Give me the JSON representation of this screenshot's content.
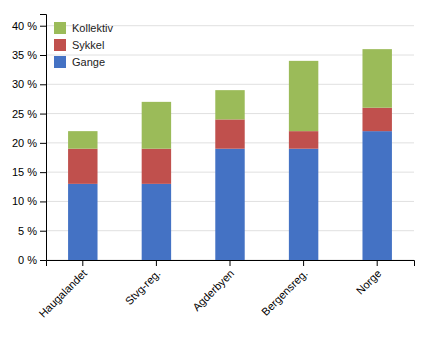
{
  "chart_data": {
    "type": "bar",
    "stacked": true,
    "categories": [
      "Haugalandet",
      "Stvg-reg.",
      "Agderbyen",
      "Bergensreg.",
      "Norge"
    ],
    "series": [
      {
        "name": "Gange",
        "color": "#4472C4",
        "values": [
          13,
          13,
          19,
          19,
          22
        ]
      },
      {
        "name": "Sykkel",
        "color": "#C0504D",
        "values": [
          6,
          6,
          5,
          3,
          4
        ]
      },
      {
        "name": "Kollektiv",
        "color": "#9BBB59",
        "values": [
          3,
          8,
          5,
          12,
          10
        ]
      }
    ],
    "ylim": [
      0,
      42
    ],
    "yticks": [
      {
        "value": 0,
        "label": "0 %"
      },
      {
        "value": 5,
        "label": "5 %"
      },
      {
        "value": 10,
        "label": "10 %"
      },
      {
        "value": 15,
        "label": "15 %"
      },
      {
        "value": 20,
        "label": "20 %"
      },
      {
        "value": 25,
        "label": "25 %"
      },
      {
        "value": 30,
        "label": "30 %"
      },
      {
        "value": 35,
        "label": "35 %"
      },
      {
        "value": 40,
        "label": "40 %"
      }
    ],
    "grid": true,
    "legend": "upper left"
  }
}
